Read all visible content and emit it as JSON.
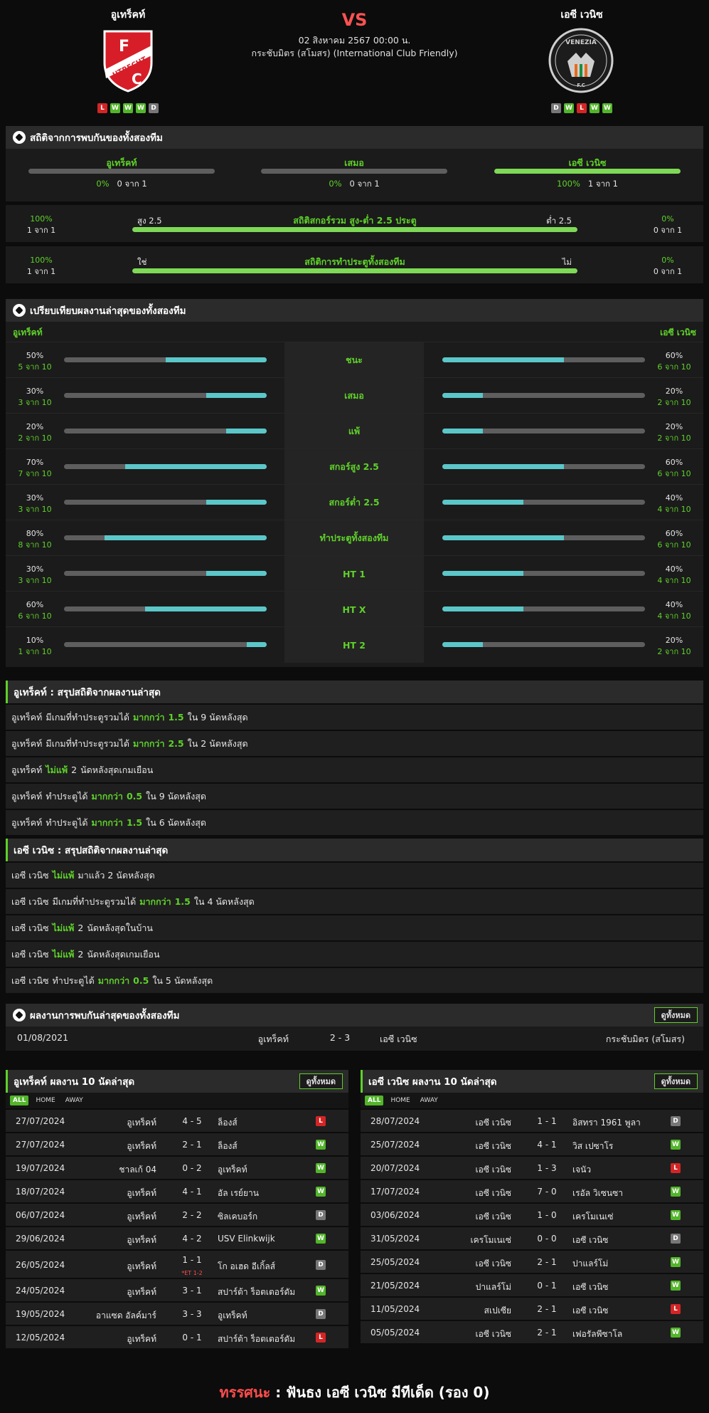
{
  "match": {
    "home": "อูเทร็คท์",
    "away": "เอซี เวนิซ",
    "vs": "VS",
    "datetime": "02 สิงหาคม 2567 00:00 น.",
    "competition": "กระชับมิตร (สโมสร) (International Club Friendly)",
    "home_form": [
      "L",
      "W",
      "W",
      "W",
      "D"
    ],
    "away_form": [
      "D",
      "W",
      "L",
      "W",
      "W"
    ],
    "home_logo_letters": [
      "F",
      "UTRECHT",
      "C"
    ],
    "away_logo_letters": [
      "VENEZIA",
      "F.C"
    ]
  },
  "h2h_stats": {
    "title": "สถิติจากการพบกันของทั้งสองทีม",
    "cols": [
      {
        "label": "อูเทร็คท์",
        "pct": "0%",
        "count": "0 จาก 1",
        "fill": 0
      },
      {
        "label": "เสมอ",
        "pct": "0%",
        "count": "0 จาก 1",
        "fill": 0
      },
      {
        "label": "เอซี เวนิซ",
        "pct": "100%",
        "count": "1 จาก 1",
        "fill": 100
      }
    ],
    "over_under": {
      "title": "สถิติสกอร์รวม สูง-ต่ำ 2.5 ประตู",
      "left_label": "สูง 2.5",
      "right_label": "ต่ำ 2.5",
      "left_pct": "100%",
      "left_count": "1 จาก 1",
      "right_pct": "0%",
      "right_count": "0 จาก 1",
      "fill": 100
    },
    "btts": {
      "title": "สถิติการทำประตูทั้งสองทีม",
      "left_label": "ใช่",
      "right_label": "ไม่",
      "left_pct": "100%",
      "left_count": "1 จาก 1",
      "right_pct": "0%",
      "right_count": "0 จาก 1",
      "fill": 100
    }
  },
  "comparison": {
    "title": "เปรียบเทียบผลงานล่าสุดของทั้งสองทีม",
    "home": "อูเทร็คท์",
    "away": "เอซี เวนิซ",
    "rows": [
      {
        "label": "ชนะ",
        "home_pct": "50%",
        "home_count": "5 จาก 10",
        "home_val": 50,
        "away_pct": "60%",
        "away_count": "6 จาก 10",
        "away_val": 60
      },
      {
        "label": "เสมอ",
        "home_pct": "30%",
        "home_count": "3 จาก 10",
        "home_val": 30,
        "away_pct": "20%",
        "away_count": "2 จาก 10",
        "away_val": 20
      },
      {
        "label": "แพ้",
        "home_pct": "20%",
        "home_count": "2 จาก 10",
        "home_val": 20,
        "away_pct": "20%",
        "away_count": "2 จาก 10",
        "away_val": 20
      },
      {
        "label": "สกอร์สูง 2.5",
        "home_pct": "70%",
        "home_count": "7 จาก 10",
        "home_val": 70,
        "away_pct": "60%",
        "away_count": "6 จาก 10",
        "away_val": 60
      },
      {
        "label": "สกอร์ต่ำ 2.5",
        "home_pct": "30%",
        "home_count": "3 จาก 10",
        "home_val": 30,
        "away_pct": "40%",
        "away_count": "4 จาก 10",
        "away_val": 40
      },
      {
        "label": "ทำประตูทั้งสองทีม",
        "home_pct": "80%",
        "home_count": "8 จาก 10",
        "home_val": 80,
        "away_pct": "60%",
        "away_count": "6 จาก 10",
        "away_val": 60
      },
      {
        "label": "HT 1",
        "home_pct": "30%",
        "home_count": "3 จาก 10",
        "home_val": 30,
        "away_pct": "40%",
        "away_count": "4 จาก 10",
        "away_val": 40
      },
      {
        "label": "HT X",
        "home_pct": "60%",
        "home_count": "6 จาก 10",
        "home_val": 60,
        "away_pct": "40%",
        "away_count": "4 จาก 10",
        "away_val": 40
      },
      {
        "label": "HT 2",
        "home_pct": "10%",
        "home_count": "1 จาก 10",
        "home_val": 10,
        "away_pct": "20%",
        "away_count": "2 จาก 10",
        "away_val": 20
      }
    ]
  },
  "home_summary": {
    "title": "อูเทร็คท์ : สรุปสถิติจากผลงานล่าสุด",
    "rows": [
      [
        {
          "t": "อูเทร็คท์"
        },
        {
          "t": "มีเกมที่ทำประตูรวมได้"
        },
        {
          "t": "มากกว่า",
          "g": true
        },
        {
          "t": "1.5",
          "g": true
        },
        {
          "t": "ใน 9 นัดหลังสุด"
        }
      ],
      [
        {
          "t": "อูเทร็คท์"
        },
        {
          "t": "มีเกมที่ทำประตูรวมได้"
        },
        {
          "t": "มากกว่า",
          "g": true
        },
        {
          "t": "2.5",
          "g": true
        },
        {
          "t": "ใน 2 นัดหลังสุด"
        }
      ],
      [
        {
          "t": "อูเทร็คท์"
        },
        {
          "t": "ไม่แพ้",
          "g": true
        },
        {
          "t": "2"
        },
        {
          "t": "นัดหลังสุดเกมเยือน"
        }
      ],
      [
        {
          "t": "อูเทร็คท์"
        },
        {
          "t": "ทำประตูได้"
        },
        {
          "t": "มากกว่า",
          "g": true
        },
        {
          "t": "0.5",
          "g": true
        },
        {
          "t": "ใน 9 นัดหลังสุด"
        }
      ],
      [
        {
          "t": "อูเทร็คท์"
        },
        {
          "t": "ทำประตูได้"
        },
        {
          "t": "มากกว่า",
          "g": true
        },
        {
          "t": "1.5",
          "g": true
        },
        {
          "t": "ใน 6 นัดหลังสุด"
        }
      ]
    ]
  },
  "away_summary": {
    "title": "เอซี เวนิซ : สรุปสถิติจากผลงานล่าสุด",
    "rows": [
      [
        {
          "t": "เอซี เวนิซ"
        },
        {
          "t": "ไม่แพ้",
          "g": true
        },
        {
          "t": "มาแล้ว 2 นัดหลังสุด"
        }
      ],
      [
        {
          "t": "เอซี เวนิซ"
        },
        {
          "t": "มีเกมที่ทำประตูรวมได้"
        },
        {
          "t": "มากกว่า",
          "g": true
        },
        {
          "t": "1.5",
          "g": true
        },
        {
          "t": "ใน 4 นัดหลังสุด"
        }
      ],
      [
        {
          "t": "เอซี เวนิซ"
        },
        {
          "t": "ไม่แพ้",
          "g": true
        },
        {
          "t": "2"
        },
        {
          "t": "นัดหลังสุดในบ้าน"
        }
      ],
      [
        {
          "t": "เอซี เวนิซ"
        },
        {
          "t": "ไม่แพ้",
          "g": true
        },
        {
          "t": "2"
        },
        {
          "t": "นัดหลังสุดเกมเยือน"
        }
      ],
      [
        {
          "t": "เอซี เวนิซ"
        },
        {
          "t": "ทำประตูได้"
        },
        {
          "t": "มากกว่า",
          "g": true
        },
        {
          "t": "0.5",
          "g": true
        },
        {
          "t": "ใน 5 นัดหลังสุด"
        }
      ]
    ]
  },
  "h2h_last": {
    "title": "ผลงานการพบกันล่าสุดของทั้งสองทีม",
    "view_all": "ดูทั้งหมด",
    "matches": [
      {
        "date": "01/08/2021",
        "home": "อูเทร็คท์",
        "score": "2 - 3",
        "away": "เอซี เวนิซ",
        "comp": "กระชับมิตร (สโมสร)"
      }
    ]
  },
  "home_last10": {
    "title": "อูเทร็คท์ ผลงาน 10 นัดล่าสุด",
    "view_all": "ดูทั้งหมด",
    "tabs": [
      "ALL",
      "HOME",
      "AWAY"
    ],
    "matches": [
      {
        "date": "27/07/2024",
        "home": "อูเทร็คท์",
        "score": "4 - 5",
        "away": "ล็องส์",
        "res": "L"
      },
      {
        "date": "27/07/2024",
        "home": "อูเทร็คท์",
        "score": "2 - 1",
        "away": "ล็องส์",
        "res": "W"
      },
      {
        "date": "19/07/2024",
        "home": "ชาลเก้ 04",
        "score": "0 - 2",
        "away": "อูเทร็คท์",
        "res": "W"
      },
      {
        "date": "18/07/2024",
        "home": "อูเทร็คท์",
        "score": "4 - 1",
        "away": "อัล เรย์ยาน",
        "res": "W"
      },
      {
        "date": "06/07/2024",
        "home": "อูเทร็คท์",
        "score": "2 - 2",
        "away": "ซิลเคบอร์ก",
        "res": "D"
      },
      {
        "date": "29/06/2024",
        "home": "อูเทร็คท์",
        "score": "4 - 2",
        "away": "USV Elinkwijk",
        "res": "W"
      },
      {
        "date": "26/05/2024",
        "home": "อูเทร็คท์",
        "score": "1 - 1",
        "away": "โก อเฮด อีเกิ้ลส์",
        "res": "D",
        "note": "*ET 1-2"
      },
      {
        "date": "24/05/2024",
        "home": "อูเทร็คท์",
        "score": "3 - 1",
        "away": "สปาร์ต้า ร็อตเตอร์ดัม",
        "res": "W"
      },
      {
        "date": "19/05/2024",
        "home": "อาแซด อัลค์มาร์",
        "score": "3 - 3",
        "away": "อูเทร็คท์",
        "res": "D"
      },
      {
        "date": "12/05/2024",
        "home": "อูเทร็คท์",
        "score": "0 - 1",
        "away": "สปาร์ต้า ร็อตเตอร์ดัม",
        "res": "L"
      }
    ]
  },
  "away_last10": {
    "title": "เอซี เวนิซ ผลงาน 10 นัดล่าสุด",
    "view_all": "ดูทั้งหมด",
    "tabs": [
      "ALL",
      "HOME",
      "AWAY"
    ],
    "matches": [
      {
        "date": "28/07/2024",
        "home": "เอซี เวนิซ",
        "score": "1 - 1",
        "away": "อิสทรา 1961 พูลา",
        "res": "D"
      },
      {
        "date": "25/07/2024",
        "home": "เอซี เวนิซ",
        "score": "4 - 1",
        "away": "วิส เปซาโร",
        "res": "W"
      },
      {
        "date": "20/07/2024",
        "home": "เอซี เวนิซ",
        "score": "1 - 3",
        "away": "เจนัว",
        "res": "L"
      },
      {
        "date": "17/07/2024",
        "home": "เอซี เวนิซ",
        "score": "7 - 0",
        "away": "เรอัล วิเซนซา",
        "res": "W"
      },
      {
        "date": "03/06/2024",
        "home": "เอซี เวนิซ",
        "score": "1 - 0",
        "away": "เครโมเนเซ่",
        "res": "W"
      },
      {
        "date": "31/05/2024",
        "home": "เครโมเนเซ่",
        "score": "0 - 0",
        "away": "เอซี เวนิซ",
        "res": "D"
      },
      {
        "date": "25/05/2024",
        "home": "เอซี เวนิซ",
        "score": "2 - 1",
        "away": "ปาแลร์โม่",
        "res": "W"
      },
      {
        "date": "21/05/2024",
        "home": "ปาแลร์โม่",
        "score": "0 - 1",
        "away": "เอซี เวนิซ",
        "res": "W"
      },
      {
        "date": "11/05/2024",
        "home": "สเปเซีย",
        "score": "2 - 1",
        "away": "เอซี เวนิซ",
        "res": "L"
      },
      {
        "date": "05/05/2024",
        "home": "เอซี เวนิซ",
        "score": "2 - 1",
        "away": "เฟอรัลพีซาโล",
        "res": "W"
      }
    ]
  },
  "verdict": {
    "label": "ทรรศนะ",
    "sep": ":",
    "text": "ฟันธง เอซี เวนิซ มีทีเด็ด (รอง 0)"
  }
}
